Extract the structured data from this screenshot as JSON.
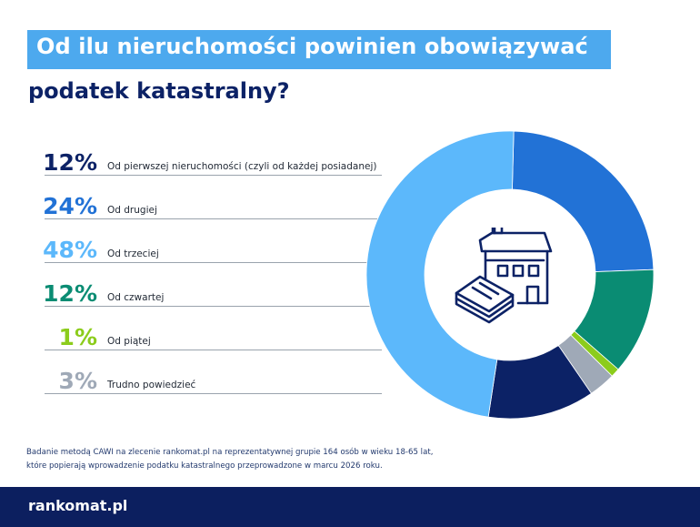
{
  "title": {
    "line1": "Od ilu nieruchomości powinien obowiązywać",
    "line2": "podatek katastralny?"
  },
  "chart_data": {
    "type": "pie",
    "donut": true,
    "categories": [
      "Od pierwszej nieruchomości (czyli od każdej posiadanej)",
      "Od drugiej",
      "Od trzeciej",
      "Od czwartej",
      "Od piątej",
      "Trudno powiedzieć"
    ],
    "values": [
      12,
      24,
      48,
      12,
      1,
      3
    ],
    "labels": [
      "12%",
      "24%",
      "48%",
      "12%",
      "1%",
      "3%"
    ],
    "colors": [
      "#0c2266",
      "#2272d6",
      "#5cb8fb",
      "#0a8c73",
      "#8ccc1c",
      "#9fa9b7"
    ],
    "legend": "left"
  },
  "footnote": {
    "line1": "Badanie metodą CAWI na zlecenie rankomat.pl na reprezentatywnej grupie 164 osób w wieku 18-65 lat,",
    "line2": "które popierają wprowadzenie podatku katastralnego przeprowadzone w marcu 2026 roku."
  },
  "footer": {
    "logo": "rankomat.pl"
  },
  "icons": {
    "center": "house-with-money-icon"
  }
}
